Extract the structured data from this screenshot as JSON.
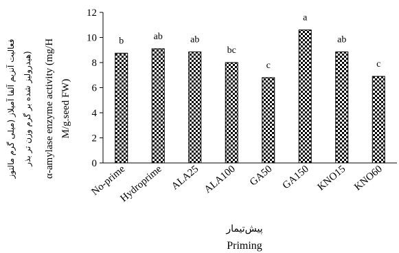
{
  "chart_data": {
    "type": "bar",
    "categories": [
      "No-prime",
      "Hydroprime",
      "ALA25",
      "ALA100",
      "GA50",
      "GA150",
      "KNO15",
      "KNO60"
    ],
    "values": [
      8.75,
      9.1,
      8.85,
      8.0,
      6.8,
      10.6,
      8.85,
      6.9
    ],
    "significance_letters": [
      "b",
      "ab",
      "ab",
      "bc",
      "c",
      "a",
      "ab",
      "c"
    ],
    "ylim": [
      0,
      12
    ],
    "yticks": [
      "0",
      "2",
      "4",
      "6",
      "8",
      "10",
      "12"
    ],
    "xlabel_fa": "پیش‌تیمار",
    "xlabel_en": "Priming",
    "ylabel_en_line1": "α-amylase enzyme activity (mg/H",
    "ylabel_en_line2": "M/g.seed FW)",
    "ylabel_fa_line1": "فعالیت آنزیم آلفا آمیلاز (میلی گرم مالتوز",
    "ylabel_fa_line2": "هیدرولیز شده بر گرم وزن تر بذر)",
    "bar_pattern": "black-white checkerboard",
    "grid": false
  }
}
